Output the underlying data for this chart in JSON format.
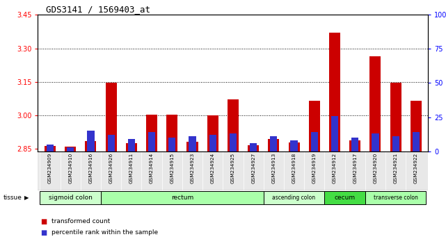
{
  "title": "GDS3141 / 1569403_at",
  "samples": [
    "GSM234909",
    "GSM234910",
    "GSM234916",
    "GSM234926",
    "GSM234911",
    "GSM234914",
    "GSM234915",
    "GSM234923",
    "GSM234924",
    "GSM234925",
    "GSM234927",
    "GSM234913",
    "GSM234918",
    "GSM234919",
    "GSM234912",
    "GSM234917",
    "GSM234920",
    "GSM234921",
    "GSM234922"
  ],
  "red_values": [
    2.865,
    2.862,
    2.885,
    3.148,
    2.875,
    3.005,
    3.003,
    2.882,
    3.002,
    3.072,
    2.868,
    2.895,
    2.878,
    3.065,
    3.37,
    2.89,
    3.265,
    3.148,
    3.065
  ],
  "blue_percentiles": [
    5,
    3,
    15,
    12,
    9,
    14,
    10,
    11,
    12,
    13,
    6,
    11,
    8,
    14,
    26,
    10,
    13,
    11,
    14
  ],
  "ylim_left": [
    2.84,
    3.45
  ],
  "ylim_right": [
    0,
    100
  ],
  "yticks_left": [
    2.85,
    3.0,
    3.15,
    3.3,
    3.45
  ],
  "yticks_right": [
    0,
    25,
    50,
    75,
    100
  ],
  "ytick_labels_right": [
    "0",
    "25",
    "50",
    "75",
    "100%"
  ],
  "hlines": [
    3.0,
    3.15,
    3.3
  ],
  "bar_color": "#cc0000",
  "blue_color": "#3333cc",
  "tissue_groups": [
    {
      "label": "sigmoid colon",
      "start": 0,
      "end": 3,
      "color": "#ccffcc"
    },
    {
      "label": "rectum",
      "start": 3,
      "end": 11,
      "color": "#aaffaa"
    },
    {
      "label": "ascending colon",
      "start": 11,
      "end": 14,
      "color": "#ccffcc"
    },
    {
      "label": "cecum",
      "start": 14,
      "end": 16,
      "color": "#44dd44"
    },
    {
      "label": "transverse colon",
      "start": 16,
      "end": 19,
      "color": "#aaffaa"
    }
  ],
  "tissue_label": "tissue",
  "legend_red": "transformed count",
  "legend_blue": "percentile rank within the sample",
  "bar_width": 0.55,
  "blue_bar_width": 0.35,
  "baseline": 2.84,
  "bg_color": "#e8e8e8"
}
